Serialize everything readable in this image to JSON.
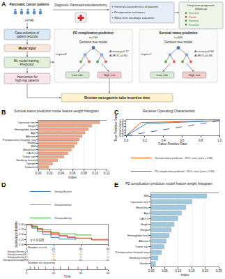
{
  "diagram": {
    "label": "A",
    "patients": {
      "title": "Pancreatic cancer patients",
      "n": "n=749"
    },
    "diagnosis": "Diagnosis: Pancreaticoduodenectomy",
    "collection": [
      "Data collection of",
      "patient records"
    ],
    "inputs": [
      "General characteristics of patients",
      "Perioperative outcomes",
      "Short-term oncologic outcomes"
    ],
    "followup": {
      "title": [
        "Long-term prognostic",
        "follow-up"
      ],
      "outcomes": [
        "Survival",
        "Death",
        "Survival",
        "Survival"
      ]
    },
    "model_input": "Model input",
    "training": [
      "ML model training -",
      "Prediction"
    ],
    "intervention": [
      "Intervention for",
      "high-risk patients"
    ],
    "action": "Shorten nasogastric tube insertion time",
    "models": [
      {
        "task": "PD complication prediction",
        "n": "n=749",
        "model": "Decision tree model",
        "layer": "Layer=8",
        "accuracy": "Accuracy=0.77",
        "auroc": "AUROC=0.80",
        "low": "Low risk",
        "high": "High risk"
      },
      {
        "task": "Survival status prediction",
        "n": "n=605",
        "model": "Decision tree model",
        "layer": "Layer=7",
        "accuracy": "Accuracy=0.84",
        "auroc": "AUROC=0.86",
        "low": "Low risk",
        "high": "High risk"
      }
    ]
  },
  "chart_data": [
    {
      "panel_label": "B",
      "type": "bar",
      "orientation": "horizontal",
      "title": "Survival status prediction model feature weight histogram",
      "x_label": "Index",
      "categories": [
        "Operation time",
        "Height",
        "Hemoglobin level",
        "Age",
        "Albumin",
        "Postoperative hospital stay",
        "Weight",
        "BMI",
        "Blood loss",
        "CA19-9",
        "Tumor size",
        "Smoking history",
        "Gender",
        "Diabetes"
      ],
      "values": [
        0.108,
        0.094,
        0.088,
        0.082,
        0.077,
        0.072,
        0.068,
        0.063,
        0.058,
        0.052,
        0.045,
        0.034,
        0.025,
        0.018
      ],
      "color": "#f4a582",
      "xlim": [
        0,
        0.12
      ],
      "xticks": [
        {
          "value": 0,
          "label": "0.00"
        },
        {
          "value": 0.02,
          "label": "0.02"
        },
        {
          "value": 0.04,
          "label": "0.04"
        },
        {
          "value": 0.06,
          "label": "0.06"
        },
        {
          "value": 0.08,
          "label": "0.08"
        },
        {
          "value": 0.1,
          "label": "0.10"
        },
        {
          "value": 0.12,
          "label": "0.12"
        }
      ],
      "grid": true
    },
    {
      "panel_label": "C",
      "type": "line",
      "title": "Receiver Operating Characteristic",
      "x_label": "False Positive Rate",
      "y_label": "True Positive Rate",
      "series": [
        {
          "name": "Survival status prediction - ROC curve (area = 0.86)",
          "color": "#e6550d",
          "x": [
            0,
            0.16,
            1
          ],
          "values": [
            0,
            0.88,
            1
          ]
        },
        {
          "name": "PD complication prediction - ROC curve (area = 0.80)",
          "color": "#3182bd",
          "x": [
            0,
            0.22,
            1
          ],
          "values": [
            0,
            0.81,
            1
          ]
        }
      ],
      "reference_line": {
        "x": [
          0,
          1
        ],
        "values": [
          0,
          1
        ],
        "color": "#1f3a93",
        "line_style": "dashed"
      },
      "xlim": [
        0,
        1
      ],
      "ylim": [
        0,
        1.05
      ],
      "xticks": [
        {
          "value": 0,
          "label": "0.0"
        },
        {
          "value": 0.2,
          "label": "0.2"
        },
        {
          "value": 0.4,
          "label": "0.4"
        },
        {
          "value": 0.6,
          "label": "0.6"
        },
        {
          "value": 0.8,
          "label": "0.8"
        },
        {
          "value": 1,
          "label": "1.0"
        }
      ],
      "yticks": [
        {
          "value": 0,
          "label": "0.0"
        },
        {
          "value": 0.2,
          "label": "0.2"
        },
        {
          "value": 0.4,
          "label": "0.4"
        },
        {
          "value": 0.6,
          "label": "0.6"
        },
        {
          "value": 0.8,
          "label": "0.8"
        },
        {
          "value": 1,
          "label": "1.0"
        }
      ],
      "legend": "bottom"
    },
    {
      "panel_label": "D",
      "type": "line",
      "line_style": "step",
      "legend": "top",
      "x_label": "Time",
      "y_label": "Survival probability",
      "annotation": "p = 0.028",
      "xlim": [
        0,
        60
      ],
      "xticks": [
        0,
        20,
        40,
        60
      ],
      "ylim": [
        0,
        1
      ],
      "yticks": [
        {
          "value": 0,
          "label": "0.00"
        },
        {
          "value": 0.25,
          "label": "0.25"
        },
        {
          "value": 0.5,
          "label": "0.50"
        },
        {
          "value": 0.75,
          "label": "0.75"
        },
        {
          "value": 1,
          "label": "1.00"
        }
      ],
      "series": [
        {
          "name": "Group=Severe",
          "color": "#1f77b4",
          "x": [
            0,
            4,
            8,
            12,
            18,
            24,
            36
          ],
          "values": [
            1,
            0.82,
            0.65,
            0.5,
            0.35,
            0.26,
            0.2
          ],
          "at_risk": [
            34,
            10,
            3,
            0
          ]
        },
        {
          "name": "Group=normal",
          "color": "#ff7f0e",
          "x": [
            0,
            4,
            8,
            12,
            18,
            24,
            30,
            36,
            48,
            60
          ],
          "values": [
            1,
            0.9,
            0.78,
            0.66,
            0.55,
            0.45,
            0.38,
            0.32,
            0.25,
            0.2
          ],
          "at_risk": [
            247,
            98,
            34,
            9
          ]
        },
        {
          "name": "Group=obesity",
          "color": "#2ca02c",
          "x": [
            0,
            4,
            8,
            12,
            18,
            24,
            36,
            48
          ],
          "values": [
            1,
            0.93,
            0.8,
            0.73,
            0.6,
            0.53,
            0.47,
            0.47
          ],
          "at_risk": [
            15,
            7,
            3,
            0
          ]
        },
        {
          "name": "Group=overweight",
          "color": "#d62728",
          "x": [
            0,
            4,
            8,
            12,
            18,
            24,
            30,
            36,
            48,
            60
          ],
          "values": [
            1,
            0.88,
            0.75,
            0.62,
            0.5,
            0.42,
            0.35,
            0.3,
            0.22,
            0.18
          ],
          "at_risk": [
            309,
            115,
            41,
            11
          ]
        }
      ],
      "risk_title": "Number at risk",
      "risk_times": [
        0,
        20,
        40,
        60
      ],
      "censoring_title": "Number of censoring",
      "censoring": {
        "color": "#d62728",
        "marker": "line",
        "times": [
          3,
          6,
          9,
          14,
          20,
          25,
          31,
          38,
          45,
          52,
          58
        ]
      }
    },
    {
      "panel_label": "E",
      "type": "bar",
      "orientation": "horizontal",
      "title": "PD complication prediction model feature weight histogram",
      "x_label": "Index",
      "categories": [
        "BMI",
        "Operation time",
        "Blood loss",
        "Age",
        "CA19-9",
        "Height",
        "Weight",
        "Hemoglobin level",
        "Albumin",
        "Tumor size",
        "Postoperative hospital stay",
        "Smoking history",
        "Gender"
      ],
      "values": [
        0.205,
        0.15,
        0.128,
        0.112,
        0.098,
        0.085,
        0.074,
        0.066,
        0.055,
        0.047,
        0.038,
        0.025,
        0.016
      ],
      "color": "#9ecae1",
      "xlim": [
        0,
        0.25
      ],
      "xticks": [
        {
          "value": 0,
          "label": "0.00"
        },
        {
          "value": 0.05,
          "label": "0.05"
        },
        {
          "value": 0.1,
          "label": "0.10"
        },
        {
          "value": 0.15,
          "label": "0.15"
        },
        {
          "value": 0.2,
          "label": "0.20"
        },
        {
          "value": 0.25,
          "label": "0.25"
        }
      ],
      "grid": true
    }
  ]
}
